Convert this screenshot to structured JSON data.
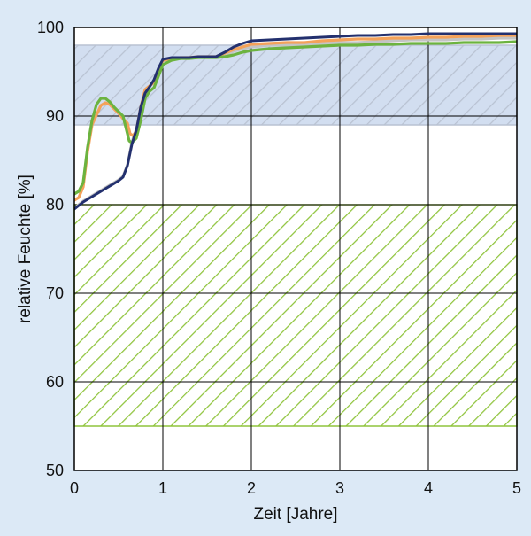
{
  "chart_data": {
    "type": "line",
    "xlabel": "Zeit [Jahre]",
    "ylabel": "relative Feuchte [%]",
    "xlim": [
      0,
      5
    ],
    "ylim": [
      50,
      100
    ],
    "xticks": [
      0,
      1,
      2,
      3,
      4,
      5
    ],
    "yticks": [
      50,
      60,
      70,
      80,
      90,
      100
    ],
    "xtick_labels": [
      "0",
      "1",
      "2",
      "3",
      "4",
      "5"
    ],
    "ytick_labels": [
      "50",
      "60",
      "70",
      "80",
      "90",
      "100"
    ],
    "grid": true,
    "bands": [
      {
        "y_range": [
          89,
          98
        ],
        "pattern": "diagonal-hatch",
        "color": "#b9c2d2"
      },
      {
        "y_range": [
          55,
          80
        ],
        "pattern": "diagonal-hatch",
        "color": "#8fc43c"
      }
    ],
    "series": [
      {
        "color": "#c4c4c4",
        "x": [
          0,
          0.05,
          0.1,
          0.2,
          0.3,
          0.4,
          0.5,
          0.55,
          0.6,
          0.65,
          0.68,
          0.7,
          0.72,
          0.75,
          0.8,
          0.85,
          0.9,
          0.95,
          1.0,
          1.1,
          1.2,
          1.3,
          1.4,
          1.5,
          1.6,
          1.7,
          1.8,
          1.9,
          2.0,
          2.2,
          2.4,
          2.6,
          2.8,
          3.0,
          3.2,
          3.4,
          3.6,
          3.8,
          4.0,
          4.2,
          4.4,
          4.6,
          4.8,
          5.0
        ],
        "y": [
          79.6,
          80.0,
          80.4,
          81.0,
          81.6,
          82.2,
          82.8,
          83.2,
          84.5,
          87.0,
          88.0,
          88.5,
          89.5,
          91.0,
          92.6,
          93.3,
          94.0,
          95.2,
          96.2,
          96.5,
          96.5,
          96.5,
          96.6,
          96.7,
          96.6,
          96.9,
          97.3,
          97.6,
          97.8,
          98.0,
          98.0,
          98.1,
          98.2,
          98.3,
          98.3,
          98.4,
          98.5,
          98.6,
          98.6,
          98.6,
          98.7,
          98.7,
          98.8,
          98.8
        ]
      },
      {
        "color": "#f4a25a",
        "x": [
          0,
          0.05,
          0.1,
          0.15,
          0.2,
          0.3,
          0.35,
          0.4,
          0.45,
          0.5,
          0.55,
          0.6,
          0.63,
          0.66,
          0.7,
          0.75,
          0.8,
          0.85,
          0.9,
          0.95,
          1.0,
          1.1,
          1.2,
          1.3,
          1.4,
          1.5,
          1.6,
          1.7,
          1.8,
          1.9,
          2.0,
          2.2,
          2.4,
          2.6,
          2.8,
          3.0,
          3.2,
          3.4,
          3.6,
          3.8,
          4.0,
          4.2,
          4.4,
          4.6,
          4.8,
          5.0
        ],
        "y": [
          80.5,
          80.8,
          82.0,
          86.0,
          89.0,
          91.2,
          91.5,
          91.3,
          90.8,
          90.3,
          89.7,
          89.2,
          88.0,
          87.8,
          88.2,
          91.0,
          93.0,
          93.4,
          93.8,
          95.2,
          96.3,
          96.5,
          96.6,
          96.6,
          96.7,
          96.7,
          96.7,
          97.1,
          97.5,
          97.8,
          98.1,
          98.2,
          98.3,
          98.3,
          98.5,
          98.6,
          98.7,
          98.7,
          98.8,
          98.8,
          98.9,
          98.9,
          99.0,
          99.0,
          99.1,
          99.1
        ]
      },
      {
        "color": "#6cb33f",
        "x": [
          0,
          0.05,
          0.1,
          0.15,
          0.2,
          0.25,
          0.3,
          0.35,
          0.4,
          0.45,
          0.5,
          0.55,
          0.6,
          0.62,
          0.65,
          0.7,
          0.75,
          0.8,
          0.85,
          0.9,
          0.95,
          1.0,
          1.1,
          1.2,
          1.3,
          1.4,
          1.5,
          1.6,
          1.7,
          1.8,
          1.9,
          2.0,
          2.2,
          2.4,
          2.6,
          2.8,
          3.0,
          3.2,
          3.4,
          3.6,
          3.8,
          4.0,
          4.2,
          4.4,
          4.6,
          4.8,
          5.0
        ],
        "y": [
          81.2,
          81.5,
          82.5,
          86.5,
          89.5,
          91.3,
          92.0,
          92.0,
          91.6,
          91.0,
          90.5,
          90.0,
          88.0,
          87.2,
          87.0,
          87.5,
          89.5,
          92.0,
          92.8,
          93.2,
          94.5,
          95.8,
          96.3,
          96.5,
          96.5,
          96.6,
          96.6,
          96.6,
          96.7,
          96.9,
          97.2,
          97.4,
          97.6,
          97.7,
          97.8,
          97.9,
          98.0,
          98.0,
          98.1,
          98.1,
          98.2,
          98.2,
          98.2,
          98.3,
          98.3,
          98.3,
          98.4
        ]
      },
      {
        "color": "#23306e",
        "x": [
          0,
          0.05,
          0.1,
          0.2,
          0.3,
          0.4,
          0.5,
          0.55,
          0.6,
          0.65,
          0.68,
          0.7,
          0.72,
          0.75,
          0.8,
          0.85,
          0.9,
          0.95,
          1.0,
          1.1,
          1.2,
          1.3,
          1.4,
          1.5,
          1.6,
          1.7,
          1.8,
          1.9,
          2.0,
          2.2,
          2.4,
          2.6,
          2.8,
          3.0,
          3.2,
          3.4,
          3.6,
          3.8,
          4.0,
          4.2,
          4.4,
          4.6,
          4.8,
          5.0
        ],
        "y": [
          79.5,
          79.9,
          80.3,
          80.9,
          81.5,
          82.1,
          82.7,
          83.1,
          84.4,
          86.8,
          87.8,
          88.4,
          89.4,
          91.0,
          92.6,
          93.3,
          94.1,
          95.4,
          96.4,
          96.6,
          96.6,
          96.6,
          96.7,
          96.7,
          96.7,
          97.2,
          97.8,
          98.2,
          98.5,
          98.6,
          98.7,
          98.8,
          98.9,
          99.0,
          99.1,
          99.1,
          99.2,
          99.2,
          99.3,
          99.3,
          99.3,
          99.3,
          99.3,
          99.3
        ]
      }
    ]
  }
}
